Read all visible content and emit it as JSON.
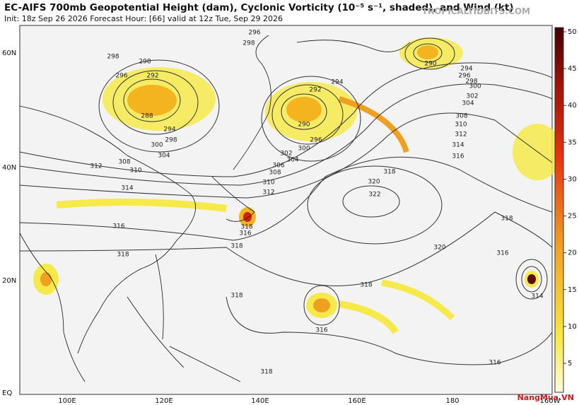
{
  "header": {
    "title": "EC-AIFS 700mb Geopotential Height (dam), Cyclonic Vorticity (10⁻⁵ s⁻¹, shaded), and Wind (kt)",
    "subtitle": "Init: 18z Sep 26 2026   Forecast Hour: [66]   valid at 12z Tue, Sep 29 2026",
    "source": "TROPICALTIDBITS.COM"
  },
  "map": {
    "lat_labels": [
      "60N",
      "40N",
      "20N",
      "EQ"
    ],
    "lon_labels": [
      "100E",
      "120E",
      "140E",
      "160E",
      "180",
      "160W"
    ],
    "contour_labels": [
      "296",
      "298",
      "298",
      "298",
      "296",
      "292",
      "288",
      "294",
      "298",
      "300",
      "304",
      "308",
      "310",
      "312",
      "314",
      "316",
      "318",
      "294",
      "292",
      "290",
      "296",
      "300",
      "302",
      "304",
      "306",
      "308",
      "310",
      "312",
      "318",
      "316",
      "318",
      "318",
      "320",
      "322",
      "320",
      "318",
      "316",
      "318",
      "318",
      "316",
      "318",
      "316",
      "314",
      "290",
      "294",
      "296",
      "298",
      "300",
      "302",
      "304",
      "308",
      "310",
      "312",
      "314",
      "316"
    ]
  },
  "colorbar": {
    "ticks": [
      5,
      10,
      15,
      20,
      25,
      30,
      35,
      40,
      45,
      50
    ]
  },
  "watermark": "NangMua.VN"
}
